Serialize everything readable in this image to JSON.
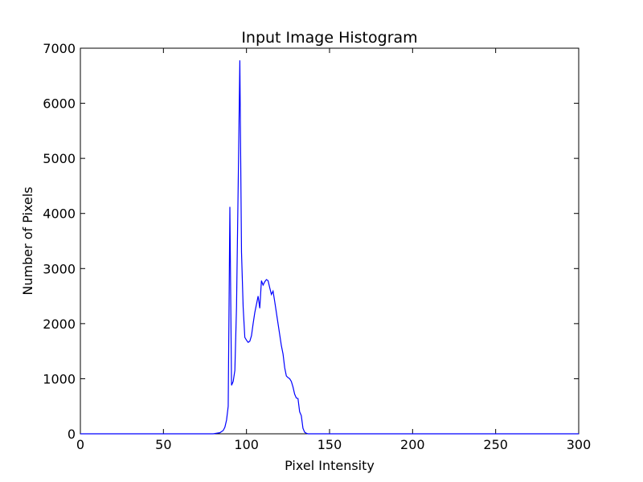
{
  "chart_data": {
    "type": "line",
    "title": "Input Image Histogram",
    "xlabel": "Pixel Intensity",
    "ylabel": "Number of Pixels",
    "xlim": [
      0,
      300
    ],
    "ylim": [
      0,
      7000
    ],
    "xticks": [
      0,
      50,
      100,
      150,
      200,
      250,
      300
    ],
    "yticks": [
      0,
      1000,
      2000,
      3000,
      4000,
      5000,
      6000,
      7000
    ],
    "grid": false,
    "legend": "none",
    "line_color": "#0000ff",
    "series": [
      {
        "x": [
          0,
          80,
          84,
          86,
          87,
          88,
          89,
          90,
          91,
          92,
          93,
          94,
          95,
          96,
          97,
          98,
          99,
          100,
          101,
          102,
          103,
          104,
          105,
          106,
          107,
          108,
          109,
          110,
          111,
          112,
          113,
          114,
          115,
          116,
          117,
          118,
          119,
          120,
          121,
          122,
          123,
          124,
          125,
          126,
          127,
          128,
          129,
          130,
          131,
          132,
          133,
          134,
          135,
          136,
          137,
          138,
          140,
          145,
          150,
          200,
          255,
          300
        ],
        "y": [
          0,
          0,
          20,
          60,
          120,
          250,
          500,
          4120,
          880,
          950,
          1150,
          2300,
          4500,
          6780,
          3300,
          2300,
          1750,
          1700,
          1660,
          1680,
          1780,
          2000,
          2200,
          2350,
          2500,
          2280,
          2780,
          2700,
          2760,
          2800,
          2780,
          2650,
          2530,
          2590,
          2400,
          2200,
          2000,
          1800,
          1600,
          1450,
          1200,
          1050,
          1020,
          1000,
          950,
          850,
          720,
          650,
          640,
          400,
          330,
          100,
          30,
          10,
          0,
          0,
          0,
          0,
          0,
          0,
          0,
          0
        ]
      }
    ]
  }
}
